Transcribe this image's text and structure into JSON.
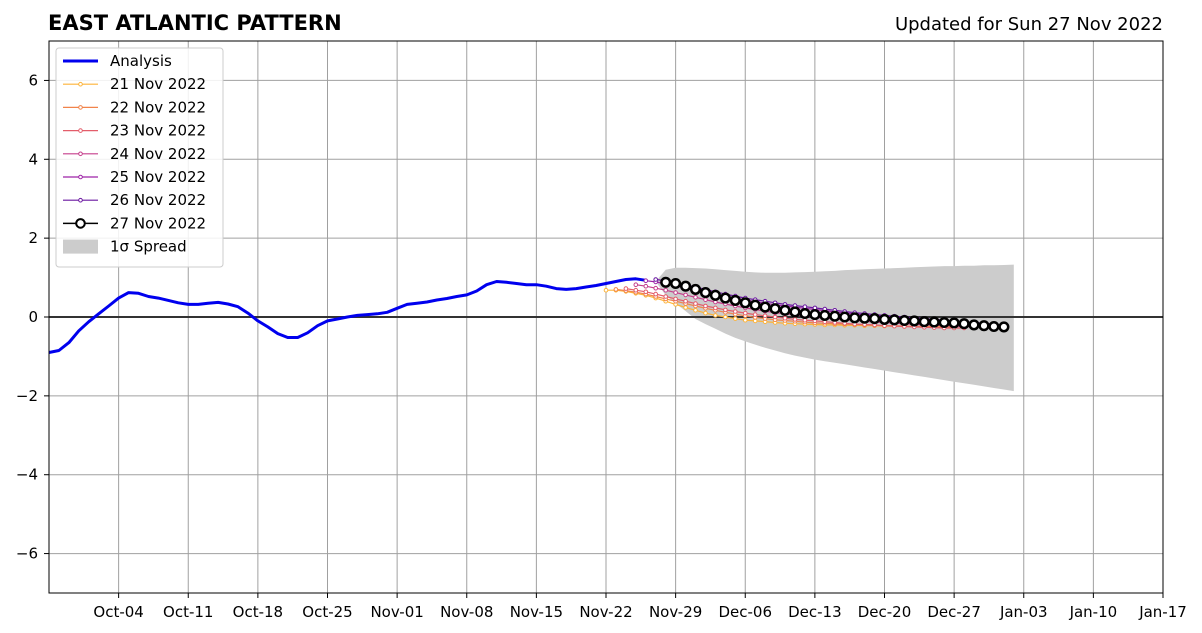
{
  "chart_data": {
    "type": "line",
    "title": "EAST ATLANTIC PATTERN",
    "subtitle": "Updated for Sun 27 Nov 2022",
    "xlabel": "",
    "ylabel": "",
    "x_type": "date",
    "xlim": [
      "2022-09-27",
      "2023-01-17"
    ],
    "ylim": [
      -7,
      7
    ],
    "grid": true,
    "legend_position": "top-left",
    "x_tick_labels": [
      {
        "label": "Oct-04",
        "date": "2022-10-04"
      },
      {
        "label": "Oct-11",
        "date": "2022-10-11"
      },
      {
        "label": "Oct-18",
        "date": "2022-10-18"
      },
      {
        "label": "Oct-25",
        "date": "2022-10-25"
      },
      {
        "label": "Nov-01",
        "date": "2022-11-01"
      },
      {
        "label": "Nov-08",
        "date": "2022-11-08"
      },
      {
        "label": "Nov-15",
        "date": "2022-11-15"
      },
      {
        "label": "Nov-22",
        "date": "2022-11-22"
      },
      {
        "label": "Nov-29",
        "date": "2022-11-29"
      },
      {
        "label": "Dec-06",
        "date": "2022-12-06"
      },
      {
        "label": "Dec-13",
        "date": "2022-12-13"
      },
      {
        "label": "Dec-20",
        "date": "2022-12-20"
      },
      {
        "label": "Dec-27",
        "date": "2022-12-27"
      },
      {
        "label": "Jan-03",
        "date": "2023-01-03"
      },
      {
        "label": "Jan-10",
        "date": "2023-01-10"
      },
      {
        "label": "Jan-17",
        "date": "2023-01-17"
      }
    ],
    "y_ticks": [
      6,
      4,
      2,
      0,
      -2,
      -4,
      -6
    ],
    "y_tick_labels": [
      "6",
      "4",
      "2",
      "0",
      "−2",
      "−4",
      "−6"
    ],
    "analysis": {
      "name": "Analysis",
      "color": "#0000ee",
      "start_date": "2022-09-27",
      "values": [
        -0.9,
        -0.85,
        -0.65,
        -0.35,
        -0.12,
        0.08,
        0.28,
        0.48,
        0.62,
        0.6,
        0.52,
        0.48,
        0.42,
        0.36,
        0.32,
        0.32,
        0.35,
        0.37,
        0.33,
        0.26,
        0.1,
        -0.1,
        -0.25,
        -0.42,
        -0.52,
        -0.52,
        -0.4,
        -0.22,
        -0.1,
        -0.05,
        0.0,
        0.04,
        0.06,
        0.08,
        0.12,
        0.22,
        0.32,
        0.35,
        0.38,
        0.43,
        0.47,
        0.52,
        0.56,
        0.66,
        0.82,
        0.9,
        0.88,
        0.85,
        0.82,
        0.82,
        0.78,
        0.72,
        0.7,
        0.72,
        0.76,
        0.8,
        0.85,
        0.9,
        0.95,
        0.97,
        0.93
      ]
    },
    "forecasts": [
      {
        "name": "21 Nov 2022",
        "color": "#fdb338",
        "start_date": "2022-11-22",
        "values": [
          0.68,
          0.68,
          0.65,
          0.6,
          0.55,
          0.48,
          0.4,
          0.32,
          0.24,
          0.17,
          0.1,
          0.04,
          0.0,
          -0.04,
          -0.08,
          -0.1,
          -0.12,
          -0.14,
          -0.16,
          -0.17,
          -0.18,
          -0.19,
          -0.2,
          -0.2,
          -0.21,
          -0.21,
          -0.22,
          -0.22,
          -0.23,
          -0.23,
          -0.24,
          -0.24,
          -0.25,
          -0.25,
          -0.25
        ]
      },
      {
        "name": "22 Nov 2022",
        "color": "#f1844b",
        "start_date": "2022-11-23",
        "values": [
          0.7,
          0.67,
          0.63,
          0.58,
          0.52,
          0.46,
          0.4,
          0.34,
          0.28,
          0.22,
          0.17,
          0.12,
          0.07,
          0.03,
          -0.01,
          -0.04,
          -0.07,
          -0.09,
          -0.11,
          -0.13,
          -0.15,
          -0.16,
          -0.17,
          -0.18,
          -0.19,
          -0.2,
          -0.21,
          -0.22,
          -0.22,
          -0.23,
          -0.24,
          -0.24,
          -0.25,
          -0.25,
          -0.25
        ]
      },
      {
        "name": "23 Nov 2022",
        "color": "#e35d6a",
        "start_date": "2022-11-24",
        "values": [
          0.72,
          0.68,
          0.64,
          0.58,
          0.52,
          0.46,
          0.4,
          0.34,
          0.28,
          0.23,
          0.18,
          0.14,
          0.1,
          0.06,
          0.03,
          0.0,
          -0.03,
          -0.06,
          -0.08,
          -0.1,
          -0.12,
          -0.14,
          -0.16,
          -0.18,
          -0.19,
          -0.2,
          -0.22,
          -0.23,
          -0.24,
          -0.25,
          -0.26,
          -0.27,
          -0.28,
          -0.28,
          -0.28
        ]
      },
      {
        "name": "24 Nov 2022",
        "color": "#c53f8b",
        "start_date": "2022-11-25",
        "values": [
          0.82,
          0.78,
          0.73,
          0.68,
          0.62,
          0.56,
          0.5,
          0.44,
          0.38,
          0.33,
          0.28,
          0.23,
          0.19,
          0.15,
          0.11,
          0.08,
          0.05,
          0.02,
          -0.01,
          -0.03,
          -0.05,
          -0.07,
          -0.09,
          -0.11,
          -0.13,
          -0.14,
          -0.16,
          -0.17,
          -0.19,
          -0.2,
          -0.21,
          -0.22,
          -0.23,
          -0.24,
          -0.25
        ]
      },
      {
        "name": "25 Nov 2022",
        "color": "#9d23a6",
        "start_date": "2022-11-26",
        "values": [
          0.92,
          0.89,
          0.84,
          0.79,
          0.73,
          0.67,
          0.62,
          0.57,
          0.52,
          0.47,
          0.43,
          0.39,
          0.35,
          0.31,
          0.28,
          0.25,
          0.22,
          0.19,
          0.16,
          0.13,
          0.1,
          0.08,
          0.05,
          0.03,
          0.01,
          -0.01,
          -0.03,
          -0.05,
          -0.07,
          -0.09,
          -0.11,
          -0.13,
          -0.15,
          -0.17,
          -0.19
        ]
      },
      {
        "name": "26 Nov 2022",
        "color": "#6a17a0",
        "start_date": "2022-11-27",
        "values": [
          0.95,
          0.92,
          0.87,
          0.82,
          0.76,
          0.7,
          0.64,
          0.58,
          0.53,
          0.48,
          0.44,
          0.4,
          0.36,
          0.32,
          0.29,
          0.26,
          0.23,
          0.2,
          0.17,
          0.14,
          0.11,
          0.09,
          0.06,
          0.04,
          0.02,
          0.0,
          -0.02,
          -0.04,
          -0.06,
          -0.08,
          -0.1,
          -0.12,
          -0.14,
          -0.16,
          -0.18
        ]
      },
      {
        "name": "27 Nov 2022",
        "color": "#000000",
        "start_date": "2022-11-28",
        "values": [
          0.88,
          0.85,
          0.78,
          0.7,
          0.62,
          0.55,
          0.48,
          0.42,
          0.36,
          0.3,
          0.25,
          0.21,
          0.17,
          0.13,
          0.09,
          0.06,
          0.04,
          0.02,
          0.0,
          -0.02,
          -0.03,
          -0.04,
          -0.06,
          -0.07,
          -0.09,
          -0.1,
          -0.12,
          -0.13,
          -0.14,
          -0.15,
          -0.17,
          -0.2,
          -0.22,
          -0.24,
          -0.25
        ]
      }
    ],
    "spread": {
      "name": "1σ Spread",
      "color": "#cccccc",
      "start_date": "2022-11-27",
      "upper": [
        0.9,
        1.2,
        1.25,
        1.25,
        1.24,
        1.23,
        1.21,
        1.19,
        1.17,
        1.15,
        1.13,
        1.12,
        1.12,
        1.12,
        1.13,
        1.14,
        1.15,
        1.16,
        1.17,
        1.19,
        1.2,
        1.21,
        1.22,
        1.23,
        1.24,
        1.25,
        1.26,
        1.27,
        1.28,
        1.29,
        1.29,
        1.3,
        1.3,
        1.31,
        1.31,
        1.32,
        1.33
      ],
      "lower": [
        0.9,
        0.55,
        0.35,
        0.15,
        -0.05,
        -0.18,
        -0.3,
        -0.42,
        -0.53,
        -0.62,
        -0.7,
        -0.78,
        -0.85,
        -0.92,
        -0.98,
        -1.03,
        -1.08,
        -1.12,
        -1.16,
        -1.2,
        -1.24,
        -1.28,
        -1.32,
        -1.36,
        -1.4,
        -1.44,
        -1.48,
        -1.52,
        -1.56,
        -1.6,
        -1.64,
        -1.68,
        -1.72,
        -1.76,
        -1.8,
        -1.84,
        -1.88
      ]
    }
  }
}
